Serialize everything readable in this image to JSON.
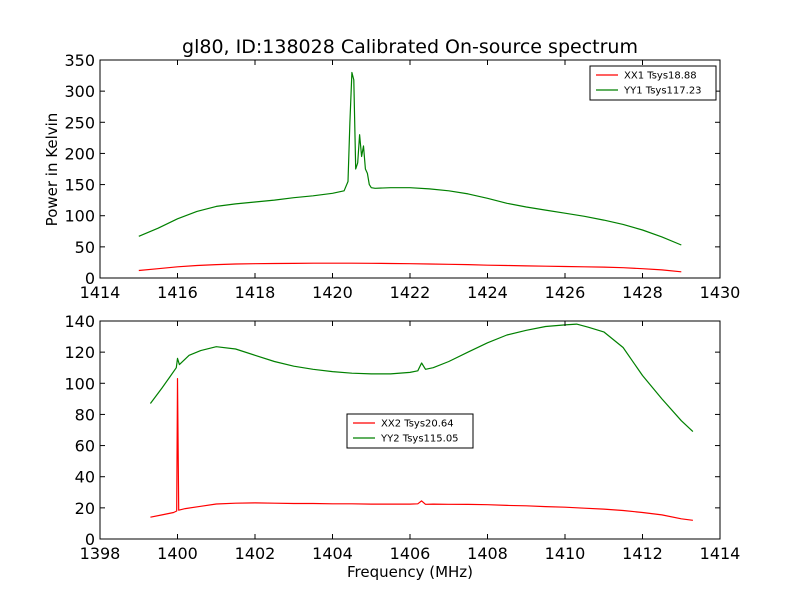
{
  "chart_data": [
    {
      "type": "line",
      "title": "gl80, ID:138028 Calibrated On-source spectrum",
      "xlabel": "",
      "ylabel": "Power in Kelvin",
      "xlim": [
        1414,
        1430
      ],
      "ylim": [
        0,
        350
      ],
      "xticks": [
        1414,
        1416,
        1418,
        1420,
        1422,
        1424,
        1426,
        1428,
        1430
      ],
      "yticks": [
        0,
        50,
        100,
        150,
        200,
        250,
        300,
        350
      ],
      "legend_position": "top-right",
      "series": [
        {
          "name": "XX1 Tsys18.88",
          "color": "#ff0000",
          "x": [
            1415.0,
            1415.5,
            1416.0,
            1416.5,
            1417.0,
            1417.5,
            1418.0,
            1418.5,
            1419.0,
            1419.5,
            1420.0,
            1420.5,
            1421.0,
            1421.5,
            1422.0,
            1422.5,
            1423.0,
            1423.5,
            1424.0,
            1424.5,
            1425.0,
            1425.5,
            1426.0,
            1426.5,
            1427.0,
            1427.5,
            1428.0,
            1428.5,
            1429.0
          ],
          "y": [
            12,
            15,
            18,
            20,
            21.5,
            22.5,
            23,
            23.3,
            23.5,
            23.7,
            23.8,
            23.8,
            23.6,
            23.3,
            23,
            22.5,
            22,
            21.5,
            20.5,
            20,
            19.5,
            19,
            18.5,
            18,
            17.5,
            16.5,
            15,
            13,
            10
          ]
        },
        {
          "name": "YY1 Tsys117.23",
          "color": "#008000",
          "x": [
            1415.0,
            1415.5,
            1416.0,
            1416.5,
            1417.0,
            1417.5,
            1418.0,
            1418.5,
            1419.0,
            1419.5,
            1420.0,
            1420.3,
            1420.4,
            1420.45,
            1420.5,
            1420.55,
            1420.6,
            1420.65,
            1420.7,
            1420.75,
            1420.8,
            1420.85,
            1420.9,
            1420.95,
            1421.0,
            1421.1,
            1421.5,
            1422.0,
            1422.5,
            1423.0,
            1423.5,
            1424.0,
            1424.5,
            1425.0,
            1425.5,
            1426.0,
            1426.5,
            1427.0,
            1427.5,
            1428.0,
            1428.5,
            1429.0
          ],
          "y": [
            67,
            80,
            95,
            107,
            115,
            119,
            122,
            125,
            129,
            132,
            136,
            140,
            155,
            250,
            330,
            318,
            175,
            185,
            230,
            195,
            212,
            175,
            168,
            150,
            145,
            144,
            145,
            145,
            143,
            140,
            135,
            128,
            120,
            114,
            109,
            104,
            99,
            93,
            86,
            77,
            66,
            53
          ]
        }
      ]
    },
    {
      "type": "line",
      "title": "",
      "xlabel": "Frequency (MHz)",
      "ylabel": "",
      "xlim": [
        1398,
        1414
      ],
      "ylim": [
        0,
        140
      ],
      "xticks": [
        1398,
        1400,
        1402,
        1404,
        1406,
        1408,
        1410,
        1412,
        1414
      ],
      "yticks": [
        0,
        20,
        40,
        60,
        80,
        100,
        120,
        140
      ],
      "legend_position": "center",
      "series": [
        {
          "name": "XX2 Tsys20.64",
          "color": "#ff0000",
          "x": [
            1399.3,
            1399.6,
            1399.9,
            1399.98,
            1400.0,
            1400.03,
            1400.2,
            1400.6,
            1401.0,
            1401.5,
            1402.0,
            1402.5,
            1403.0,
            1403.5,
            1404.0,
            1404.5,
            1405.0,
            1405.5,
            1406.0,
            1406.2,
            1406.3,
            1406.4,
            1406.6,
            1407.0,
            1407.5,
            1408.0,
            1408.5,
            1409.0,
            1409.5,
            1410.0,
            1410.5,
            1411.0,
            1411.5,
            1412.0,
            1412.5,
            1413.0,
            1413.3
          ],
          "y": [
            14,
            15.5,
            17,
            18,
            103,
            18.5,
            19.5,
            21,
            22.5,
            23,
            23.2,
            23,
            22.8,
            22.8,
            22.6,
            22.6,
            22.4,
            22.4,
            22.4,
            22.6,
            24.5,
            22.3,
            22.4,
            22.3,
            22.2,
            22,
            21.6,
            21.3,
            20.8,
            20.4,
            19.8,
            19.2,
            18.3,
            17,
            15.5,
            13,
            12
          ]
        },
        {
          "name": "YY2 Tsys115.05",
          "color": "#008000",
          "x": [
            1399.3,
            1399.6,
            1399.8,
            1399.97,
            1400.0,
            1400.05,
            1400.3,
            1400.6,
            1401.0,
            1401.5,
            1402.0,
            1402.5,
            1403.0,
            1403.5,
            1404.0,
            1404.5,
            1405.0,
            1405.5,
            1406.0,
            1406.2,
            1406.3,
            1406.4,
            1406.6,
            1407.0,
            1407.5,
            1408.0,
            1408.5,
            1409.0,
            1409.5,
            1410.0,
            1410.3,
            1410.6,
            1411.0,
            1411.5,
            1412.0,
            1412.5,
            1413.0,
            1413.3
          ],
          "y": [
            87,
            97,
            104,
            110,
            116,
            112,
            118,
            121,
            123.5,
            122,
            118,
            114,
            111,
            109,
            107.5,
            106.5,
            106,
            106,
            107,
            108,
            113,
            109,
            110,
            114,
            120,
            126,
            131,
            134,
            136.5,
            137.5,
            138,
            136,
            133,
            123,
            105,
            90,
            76,
            69
          ]
        }
      ]
    }
  ]
}
